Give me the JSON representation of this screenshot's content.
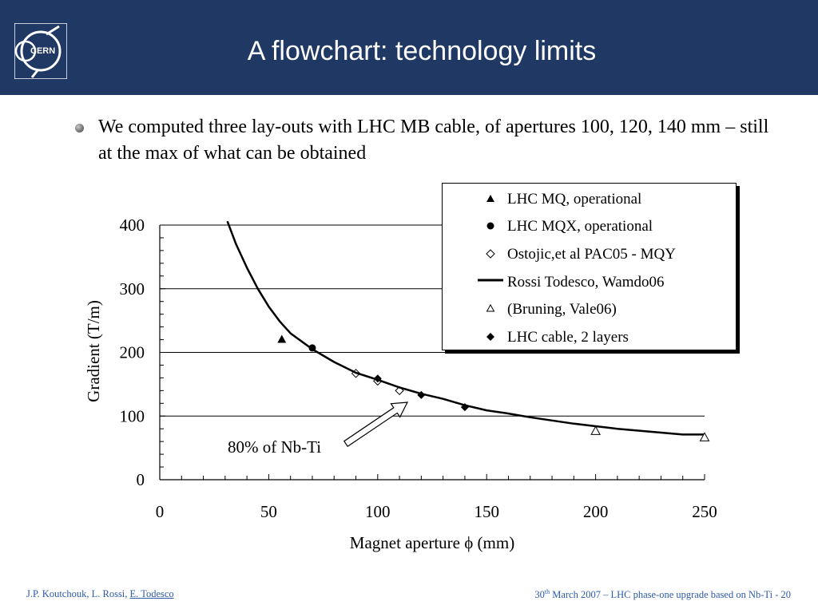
{
  "slide": {
    "title": "A flowchart: technology limits",
    "logo_text": "CERN",
    "bullet": "We computed three lay-outs with LHC MB cable, of apertures 100, 120, 140 mm – still at the max of what can be obtained"
  },
  "footer": {
    "authors_prefix": "J.P. Koutchouk, L. Rossi, ",
    "authors_link": "E. Todesco",
    "date_day": "30",
    "date_suffix": "th",
    "date_rest": " March 2007 – LHC phase-one upgrade based on Nb-Ti  - 20"
  },
  "chart_data": {
    "type": "scatter",
    "xlabel": "Magnet aperture ϕ (mm)",
    "ylabel": "Gradient  (T/m)",
    "xlim": [
      0,
      250
    ],
    "ylim": [
      0,
      400
    ],
    "xticks": [
      0,
      50,
      100,
      150,
      200,
      250
    ],
    "yticks": [
      0,
      100,
      200,
      300,
      400
    ],
    "grid": "horizontal",
    "legend_position": "top-right",
    "annotation": "80% of Nb-Ti",
    "series": [
      {
        "name": "LHC MQ, operational",
        "marker": "filled-triangle",
        "points": [
          [
            56,
            220
          ]
        ]
      },
      {
        "name": "LHC MQX, operational",
        "marker": "filled-circle",
        "points": [
          [
            70,
            207
          ]
        ]
      },
      {
        "name": "Ostojic,et al PAC05 - MQY",
        "marker": "open-diamond",
        "points": [
          [
            90,
            167
          ],
          [
            100,
            155
          ],
          [
            110,
            140
          ]
        ]
      },
      {
        "name": "Rossi Todesco, Wamdo06",
        "marker": "line",
        "points": [
          [
            31,
            406
          ],
          [
            35,
            370
          ],
          [
            40,
            333
          ],
          [
            45,
            300
          ],
          [
            50,
            272
          ],
          [
            55,
            249
          ],
          [
            60,
            230
          ],
          [
            70,
            205
          ],
          [
            80,
            185
          ],
          [
            90,
            168
          ],
          [
            100,
            157
          ],
          [
            110,
            145
          ],
          [
            120,
            135
          ],
          [
            130,
            127
          ],
          [
            140,
            117
          ],
          [
            150,
            109
          ],
          [
            160,
            104
          ],
          [
            170,
            98
          ],
          [
            180,
            93
          ],
          [
            190,
            88
          ],
          [
            200,
            84
          ],
          [
            210,
            80
          ],
          [
            220,
            77
          ],
          [
            230,
            74
          ],
          [
            240,
            71
          ],
          [
            250,
            71
          ]
        ]
      },
      {
        "name": "(Bruning, Vale06)",
        "marker": "open-triangle",
        "points": [
          [
            200,
            76
          ],
          [
            250,
            66
          ]
        ]
      },
      {
        "name": "LHC cable, 2 layers",
        "marker": "filled-diamond",
        "points": [
          [
            100,
            159
          ],
          [
            120,
            133
          ],
          [
            140,
            114
          ]
        ]
      }
    ]
  }
}
